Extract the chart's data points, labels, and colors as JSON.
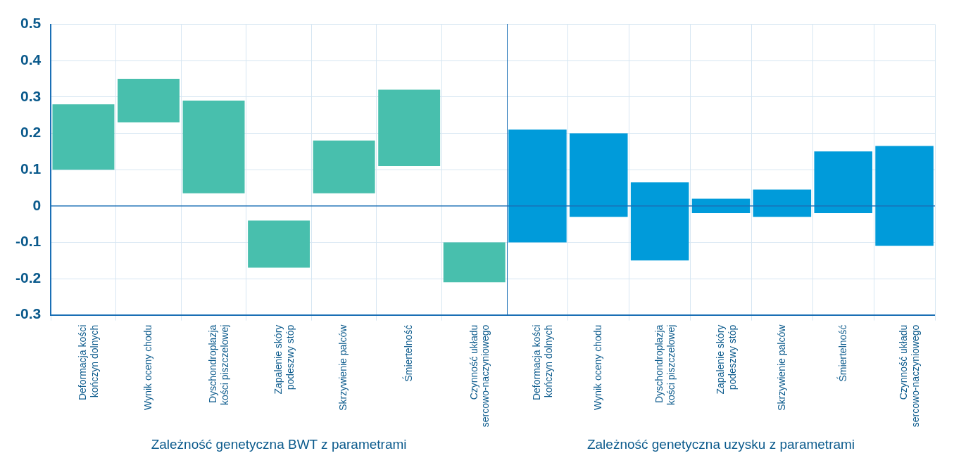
{
  "chart_data": [
    {
      "type": "bar",
      "xlabel": "Zależność genetyczna BWT z parametrami",
      "categories": [
        "Deformacja kości kończyn dolnych",
        "Wynik oceny chodu",
        "Dyschondroplazja kości piszczelowej",
        "Zapalenie skóry podeszwy stóp",
        "Skrzywienie palców",
        "Śmiertelność",
        "Czynność układu sercowo-naczyniowego"
      ],
      "series": [
        {
          "color": "#48bfad",
          "base": [
            0.1,
            0.23,
            0.035,
            -0.17,
            0.035,
            0.11,
            -0.21
          ],
          "values": [
            0.18,
            0.12,
            0.255,
            0.13,
            0.145,
            0.21,
            0.11
          ]
        }
      ],
      "ylim": [
        -0.3,
        0.5
      ],
      "yticks": [
        -0.3,
        -0.2,
        -0.1,
        0,
        0.1,
        0.2,
        0.3,
        0.4,
        0.5
      ],
      "grid": true,
      "legend": false,
      "ref_lines": [
        {
          "axis": "y",
          "value": 0,
          "color": "#1a6fb5"
        }
      ]
    },
    {
      "type": "bar",
      "xlabel": "Zależność genetyczna uzysku z parametrami",
      "categories": [
        "Deformacja kości kończyn dolnych",
        "Wynik oceny chodu",
        "Dyschondroplazja kości piszczelowej",
        "Zapalenie skóry podeszwy stóp",
        "Skrzywienie palców",
        "Śmiertelność",
        "Czynność układu sercowo-naczyniowego"
      ],
      "series": [
        {
          "color": "#009bda",
          "base": [
            -0.1,
            -0.03,
            -0.15,
            -0.02,
            -0.03,
            -0.02,
            -0.11
          ],
          "values": [
            0.31,
            0.23,
            0.215,
            0.04,
            0.075,
            0.17,
            0.275
          ]
        }
      ],
      "ylim": [
        -0.3,
        0.5
      ],
      "yticks": [
        -0.3,
        -0.2,
        -0.1,
        0,
        0.1,
        0.2,
        0.3,
        0.4,
        0.5
      ],
      "grid": true,
      "legend": false,
      "tick_labels": "x",
      "ref_lines": [
        {
          "axis": "y",
          "value": 0,
          "color": "#1a6fb5"
        }
      ]
    }
  ]
}
